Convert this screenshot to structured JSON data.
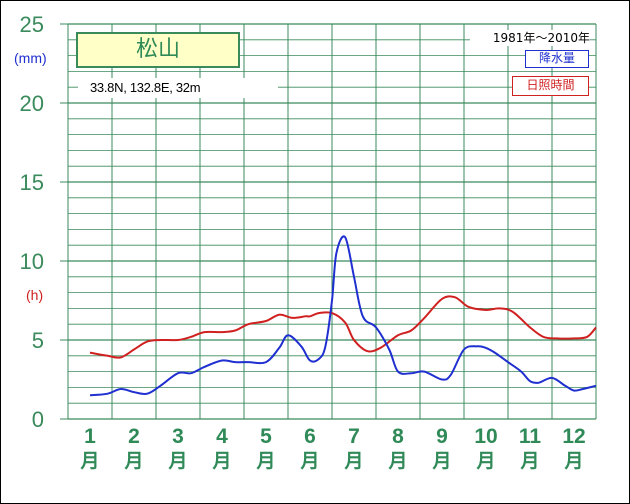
{
  "chart_data": {
    "type": "line",
    "title": "松山",
    "location": "33.8N,  132.8E,  32m",
    "period": "1981年〜2010年",
    "y_tick_labels": [
      "25",
      "20",
      "15",
      "10",
      "5",
      "0"
    ],
    "unit_precip": "(mm)",
    "unit_sun": "(h)",
    "ylim": [
      0,
      25
    ],
    "grid": true,
    "legend_position": "top-right",
    "categories": [
      {
        "num": "1",
        "unit": "月"
      },
      {
        "num": "2",
        "unit": "月"
      },
      {
        "num": "3",
        "unit": "月"
      },
      {
        "num": "4",
        "unit": "月"
      },
      {
        "num": "5",
        "unit": "月"
      },
      {
        "num": "6",
        "unit": "月"
      },
      {
        "num": "7",
        "unit": "月"
      },
      {
        "num": "8",
        "unit": "月"
      },
      {
        "num": "9",
        "unit": "月"
      },
      {
        "num": "10",
        "unit": "月"
      },
      {
        "num": "11",
        "unit": "月"
      },
      {
        "num": "12",
        "unit": "月"
      }
    ],
    "series": [
      {
        "name": "降水量",
        "color": "#1f2fd0",
        "x": [
          1,
          1.4,
          1.7,
          2,
          2.3,
          2.6,
          3,
          3.3,
          3.6,
          4,
          4.3,
          4.6,
          5,
          5.3,
          5.5,
          5.8,
          6,
          6.2,
          6.35,
          6.5,
          6.6,
          6.8,
          7,
          7.2,
          7.5,
          7.8,
          8,
          8.3,
          8.6,
          9,
          9.2,
          9.5,
          9.8,
          10,
          10.2,
          10.5,
          10.8,
          11,
          11.2,
          11.5,
          11.8,
          12,
          12.2,
          12.5
        ],
        "values": [
          1.5,
          1.6,
          1.9,
          1.7,
          1.6,
          2.1,
          2.9,
          2.9,
          3.3,
          3.7,
          3.6,
          3.6,
          3.6,
          4.5,
          5.3,
          4.6,
          3.7,
          3.8,
          4.6,
          7.5,
          10.5,
          11.5,
          9.0,
          6.5,
          5.8,
          4.4,
          3.0,
          2.9,
          3.0,
          2.5,
          2.8,
          4.4,
          4.6,
          4.5,
          4.2,
          3.6,
          3.0,
          2.4,
          2.3,
          2.6,
          2.1,
          1.8,
          1.9,
          2.1
        ]
      },
      {
        "name": "日照時間",
        "color": "#d02020",
        "x": [
          1,
          1.4,
          1.7,
          2,
          2.3,
          2.6,
          3,
          3.3,
          3.6,
          4,
          4.3,
          4.6,
          5,
          5.3,
          5.6,
          5.9,
          6,
          6.2,
          6.5,
          6.8,
          7,
          7.3,
          7.6,
          8,
          8.3,
          8.6,
          9,
          9.3,
          9.6,
          10,
          10.3,
          10.6,
          11,
          11.3,
          11.6,
          12,
          12.3,
          12.5
        ],
        "values": [
          4.2,
          4.0,
          3.9,
          4.4,
          4.9,
          5.0,
          5.0,
          5.2,
          5.5,
          5.5,
          5.6,
          6.0,
          6.2,
          6.6,
          6.4,
          6.5,
          6.5,
          6.7,
          6.7,
          6.1,
          5.0,
          4.3,
          4.5,
          5.3,
          5.6,
          6.4,
          7.6,
          7.7,
          7.1,
          6.9,
          7.0,
          6.8,
          5.8,
          5.2,
          5.1,
          5.1,
          5.2,
          5.8
        ]
      }
    ]
  }
}
